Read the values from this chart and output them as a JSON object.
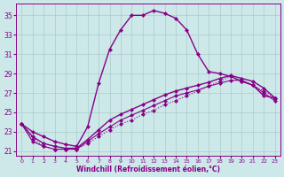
{
  "xlabel": "Windchill (Refroidissement éolien,°C)",
  "bg_color": "#cce8e8",
  "grid_color": "#aacccc",
  "line_color": "#880088",
  "xlim": [
    -0.5,
    23.5
  ],
  "ylim": [
    20.5,
    36.2
  ],
  "xticks": [
    0,
    1,
    2,
    3,
    4,
    5,
    6,
    7,
    8,
    9,
    10,
    11,
    12,
    13,
    14,
    15,
    16,
    17,
    18,
    19,
    20,
    21,
    22,
    23
  ],
  "yticks": [
    21,
    23,
    25,
    27,
    29,
    31,
    33,
    35
  ],
  "curves": [
    {
      "x": [
        0,
        1,
        2,
        3,
        4,
        5,
        6,
        7,
        8,
        9,
        10,
        11,
        12,
        13,
        14,
        15,
        16,
        17,
        18,
        19,
        20,
        21,
        22,
        23
      ],
      "y": [
        23.8,
        23.0,
        22.5,
        22.0,
        21.7,
        21.5,
        23.5,
        28.0,
        31.5,
        33.5,
        35.0,
        35.0,
        35.5,
        35.2,
        34.7,
        33.5,
        31.0,
        29.2,
        29.0,
        28.7,
        28.2,
        27.8,
        26.7,
        26.5
      ],
      "style": "solid",
      "lw": 1.0
    },
    {
      "x": [
        0,
        1,
        2,
        3,
        4,
        5,
        6,
        7,
        8,
        9,
        10,
        11,
        12,
        13,
        14,
        15,
        16,
        17,
        18,
        19,
        20,
        21,
        22,
        23
      ],
      "y": [
        23.8,
        22.5,
        21.8,
        21.5,
        21.3,
        21.3,
        22.2,
        23.2,
        24.2,
        24.8,
        25.3,
        25.8,
        26.3,
        26.8,
        27.2,
        27.5,
        27.8,
        28.1,
        28.5,
        28.8,
        28.5,
        28.2,
        27.5,
        26.5
      ],
      "style": "solid",
      "lw": 1.0
    },
    {
      "x": [
        0,
        1,
        2,
        3,
        4,
        5,
        6,
        7,
        8,
        9,
        10,
        11,
        12,
        13,
        14,
        15,
        16,
        17,
        18,
        19,
        20,
        21,
        22,
        23
      ],
      "y": [
        23.8,
        22.3,
        21.5,
        21.2,
        21.2,
        21.2,
        21.8,
        22.5,
        23.2,
        23.8,
        24.2,
        24.8,
        25.2,
        25.8,
        26.2,
        26.7,
        27.2,
        27.7,
        28.2,
        28.7,
        28.2,
        27.8,
        27.2,
        26.5
      ],
      "style": "dotted",
      "lw": 0.8
    },
    {
      "x": [
        0,
        1,
        2,
        3,
        4,
        5,
        6,
        7,
        8,
        9,
        10,
        11,
        12,
        13,
        14,
        15,
        16,
        17,
        18,
        19,
        20,
        21,
        22,
        23
      ],
      "y": [
        23.8,
        22.0,
        21.5,
        21.2,
        21.2,
        21.2,
        22.0,
        22.8,
        23.5,
        24.2,
        24.7,
        25.2,
        25.7,
        26.2,
        26.7,
        27.0,
        27.3,
        27.7,
        28.0,
        28.3,
        28.3,
        27.8,
        27.0,
        26.2
      ],
      "style": "solid",
      "lw": 0.8
    }
  ]
}
